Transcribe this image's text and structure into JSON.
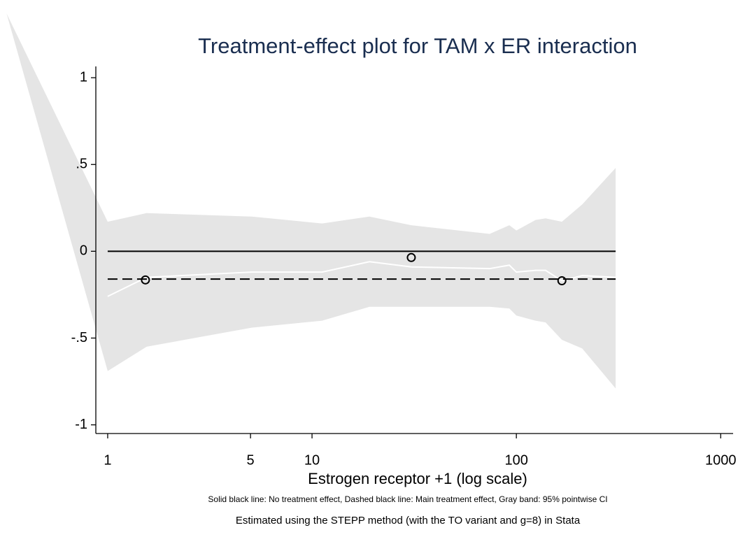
{
  "chart_data": {
    "type": "stepp",
    "title": "Treatment-effect plot for TAM x ER interaction",
    "xlabel": "Estrogen receptor +1 (log scale)",
    "note": "Solid black line: No treatment effect, Dashed black line: Main treatment effect, Gray band: 95% pointwise CI",
    "caption": "Estimated using the STEPP method (with the TO variant and g=8) in Stata",
    "xscale": "log",
    "xlim": [
      0.875,
      1150
    ],
    "xticks": [
      1,
      5,
      10,
      100,
      1000
    ],
    "ylim": [
      -1.05,
      1.065
    ],
    "yticks": [
      1,
      {
        "value": 0.5,
        "label": ".5"
      },
      0,
      {
        "value": -0.5,
        "label": "-.5"
      },
      -1
    ],
    "x": [
      0.32,
      1,
      1.55,
      5.07,
      11.2,
      19.1,
      30.6,
      74,
      92.4,
      100,
      124,
      139,
      167,
      210,
      306
    ],
    "band": {
      "color": "#e5e5e5",
      "upper": [
        1.37,
        0.17,
        0.22,
        0.2,
        0.16,
        0.2,
        0.15,
        0.1,
        0.15,
        0.12,
        0.18,
        0.19,
        0.17,
        0.27,
        0.48
      ],
      "lower": [
        1.37,
        -0.69,
        -0.55,
        -0.44,
        -0.4,
        -0.32,
        -0.32,
        -0.32,
        -0.33,
        -0.37,
        -0.4,
        -0.41,
        -0.51,
        -0.56,
        -0.79
      ]
    },
    "estimate": {
      "color": "#ffffff",
      "values": [
        null,
        -0.26,
        -0.15,
        -0.12,
        -0.12,
        -0.06,
        -0.09,
        -0.1,
        -0.08,
        -0.12,
        -0.11,
        -0.11,
        -0.17,
        -0.14,
        -0.15
      ]
    },
    "points": {
      "color": "#000000",
      "x": [
        1.53,
        30.6,
        167
      ],
      "values": [
        -0.165,
        -0.036,
        -0.17
      ]
    },
    "reference_lines": [
      {
        "y": 0,
        "x": [
          1,
          306
        ],
        "style": "solid",
        "color": "#000000"
      },
      {
        "y": -0.16,
        "x": [
          1,
          306
        ],
        "style": "dashed",
        "color": "#000000"
      }
    ]
  }
}
